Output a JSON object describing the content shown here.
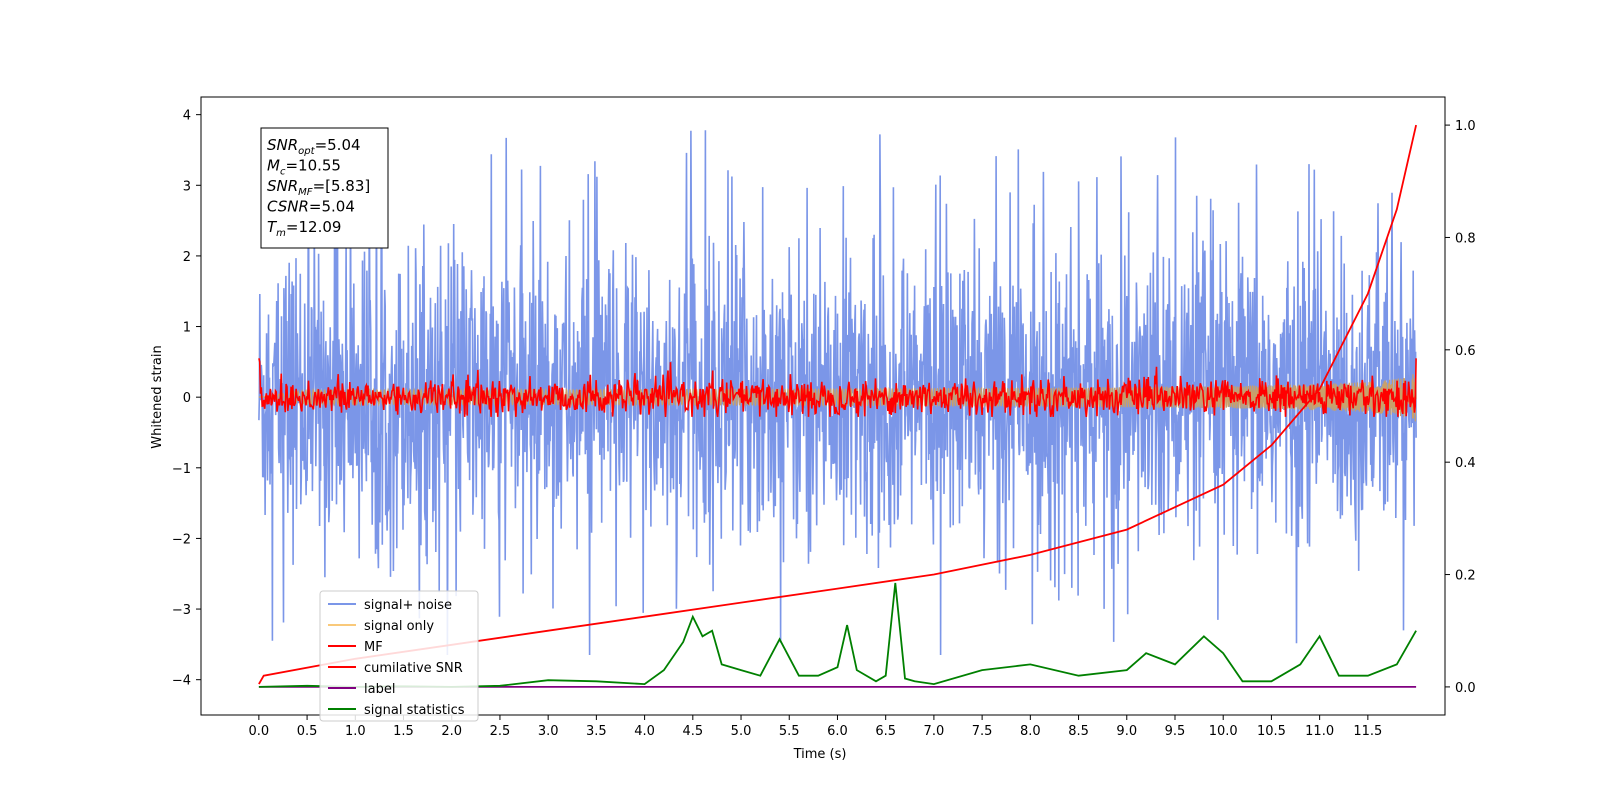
{
  "chart_data": {
    "type": "line",
    "xlabel": "Time (s)",
    "ylabel": "Whitened strain",
    "xlim": [
      -0.6,
      12.3
    ],
    "ylim": [
      -4.5,
      4.25
    ],
    "y2lim": [
      -0.05,
      1.05
    ],
    "x_ticks": [
      "0.0",
      "0.5",
      "1.0",
      "1.5",
      "2.0",
      "2.5",
      "3.0",
      "3.5",
      "4.0",
      "4.5",
      "5.0",
      "5.5",
      "6.0",
      "6.5",
      "7.0",
      "7.5",
      "8.0",
      "8.5",
      "9.0",
      "9.5",
      "10.0",
      "10.5",
      "11.0",
      "11.5"
    ],
    "y_ticks": [
      "4",
      "3",
      "2",
      "1",
      "0",
      "−1",
      "−2",
      "−3",
      "−4"
    ],
    "y2_ticks": [
      "1.0",
      "0.8",
      "0.6",
      "0.4",
      "0.2",
      "0.0"
    ],
    "info_box": [
      {
        "sym": "SNR",
        "sub": "opt",
        "val": "=5.04"
      },
      {
        "sym": "M",
        "sub": "c",
        "val": "=10.55"
      },
      {
        "sym": "SNR",
        "sub": "MF",
        "val": "=[5.83]"
      },
      {
        "sym": "CSNR",
        "sub": "",
        "val": "=5.04"
      },
      {
        "sym": "T",
        "sub": "m",
        "val": "=12.09"
      }
    ],
    "legend_position": "lower-left",
    "series": [
      {
        "name": "signal+ noise",
        "color": "#7b96e8",
        "axis": "left",
        "note": "dense noise, roughly ±(1–3) with spikes to ~3.8 / ~-3.6"
      },
      {
        "name": "signal only",
        "color": "#f9c97a",
        "axis": "left",
        "note": "chirp envelope growing from 0 to ~±0.35 near t=12"
      },
      {
        "name": "MF",
        "color": "#ff0000",
        "axis": "left",
        "note": "matched filter output around 0, amplitude ~0.3, starts at 1.0"
      },
      {
        "name": "cumilative SNR",
        "color": "#ff0000",
        "axis": "right",
        "x": [
          0.0,
          0.05,
          1.0,
          2.0,
          3.0,
          4.0,
          5.0,
          6.0,
          7.0,
          8.0,
          9.0,
          10.0,
          10.5,
          11.0,
          11.5,
          11.8,
          12.0
        ],
        "values": [
          0.005,
          0.02,
          0.05,
          0.075,
          0.1,
          0.125,
          0.15,
          0.175,
          0.2,
          0.235,
          0.28,
          0.36,
          0.43,
          0.53,
          0.7,
          0.85,
          1.0
        ]
      },
      {
        "name": "label",
        "color": "#800080",
        "axis": "right",
        "x": [
          0.0,
          12.0
        ],
        "values": [
          0.0,
          0.0
        ]
      },
      {
        "name": "signal statistics",
        "color": "#008000",
        "axis": "right",
        "x": [
          0.0,
          0.5,
          1.0,
          1.5,
          2.0,
          2.5,
          3.0,
          3.5,
          4.0,
          4.2,
          4.4,
          4.5,
          4.6,
          4.7,
          4.8,
          5.0,
          5.2,
          5.4,
          5.6,
          5.8,
          6.0,
          6.1,
          6.2,
          6.4,
          6.5,
          6.6,
          6.7,
          6.8,
          7.0,
          7.5,
          8.0,
          8.5,
          9.0,
          9.2,
          9.5,
          9.8,
          10.0,
          10.2,
          10.5,
          10.8,
          11.0,
          11.2,
          11.5,
          11.8,
          12.0
        ],
        "values": [
          0.0,
          0.002,
          0.0,
          0.001,
          0.0,
          0.002,
          0.012,
          0.01,
          0.005,
          0.03,
          0.08,
          0.125,
          0.09,
          0.1,
          0.04,
          0.03,
          0.02,
          0.085,
          0.02,
          0.02,
          0.035,
          0.11,
          0.03,
          0.01,
          0.02,
          0.185,
          0.015,
          0.01,
          0.005,
          0.03,
          0.04,
          0.02,
          0.03,
          0.06,
          0.04,
          0.09,
          0.06,
          0.01,
          0.01,
          0.04,
          0.09,
          0.02,
          0.02,
          0.04,
          0.1
        ]
      }
    ]
  }
}
